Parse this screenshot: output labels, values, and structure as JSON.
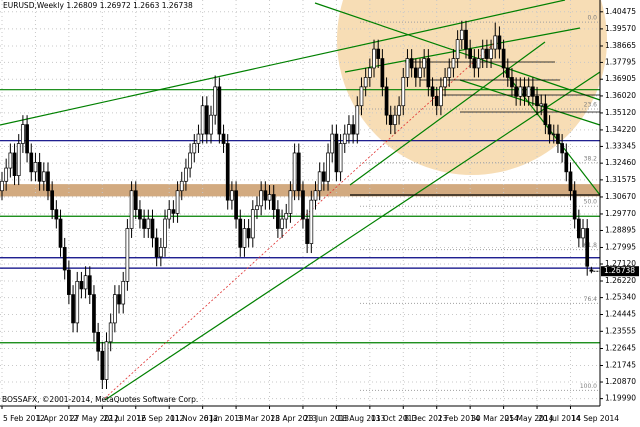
{
  "chart_data": {
    "type": "candlestick",
    "title": "EURUSD,Weekly",
    "footer": "BOSSAFX, ©2001-2014, MetaQuotes Software Corp.",
    "x": [
      "5 Feb 2012",
      null,
      null,
      null,
      null,
      null,
      null,
      null,
      "1 Apr 2012",
      null,
      null,
      null,
      null,
      null,
      null,
      null,
      "27 May 2012",
      null,
      null,
      null,
      null,
      null,
      null,
      null,
      "22 Jul 2012",
      null,
      null,
      null,
      null,
      null,
      null,
      null,
      "16 Sep 2012",
      null,
      null,
      null,
      null,
      null,
      null,
      null,
      "11 Nov 2012",
      null,
      null,
      null,
      null,
      null,
      null,
      null,
      "6 Jan 2013",
      null,
      null,
      null,
      null,
      null,
      null,
      null,
      "3 Mar 2013",
      null,
      null,
      null,
      null,
      null,
      null,
      null,
      "28 Apr 2013",
      null,
      null,
      null,
      null,
      null,
      null,
      null,
      "23 Jun 2013",
      null,
      null,
      null,
      null,
      null,
      null,
      null,
      "18 Aug 2013",
      null,
      null,
      null,
      null,
      null,
      null,
      null,
      "13 Oct 2013",
      null,
      null,
      null,
      null,
      null,
      null,
      null,
      "8 Dec 2013",
      null,
      null,
      null,
      null,
      null,
      null,
      null,
      "2 Feb 2014",
      null,
      null,
      null,
      null,
      null,
      null,
      null,
      "30 Mar 2014",
      null,
      null,
      null,
      null,
      null,
      null,
      null,
      "25 May 2014",
      null,
      null,
      null,
      null,
      null,
      null,
      null,
      "20 Jul 2014",
      null,
      null,
      null,
      null,
      null,
      null,
      null,
      "14 Sep 2014",
      null,
      null,
      null,
      null,
      null
    ],
    "open": [
      1.31,
      1.315,
      1.322,
      1.33,
      1.318,
      1.335,
      1.345,
      1.33,
      1.32,
      1.325,
      1.315,
      1.32,
      1.31,
      1.3,
      1.295,
      1.28,
      1.268,
      1.255,
      1.24,
      1.262,
      1.258,
      1.265,
      1.255,
      1.235,
      1.225,
      1.21,
      1.23,
      1.24,
      1.255,
      1.25,
      1.262,
      1.29,
      1.31,
      1.3,
      1.295,
      1.29,
      1.295,
      1.285,
      1.275,
      1.28,
      1.295,
      1.3,
      1.298,
      1.31,
      1.315,
      1.322,
      1.33,
      1.335,
      1.34,
      1.355,
      1.34,
      1.35,
      1.365,
      1.34,
      1.335,
      1.305,
      1.31,
      1.295,
      1.28,
      1.29,
      1.285,
      1.3,
      1.302,
      1.31,
      1.305,
      1.308,
      1.3,
      1.29,
      1.295,
      1.298,
      1.31,
      1.33,
      1.31,
      1.295,
      1.282,
      1.305,
      1.31,
      1.32,
      1.315,
      1.33,
      1.34,
      1.32,
      1.335,
      1.34,
      1.345,
      1.34,
      1.355,
      1.365,
      1.37,
      1.375,
      1.385,
      1.38,
      1.365,
      1.35,
      1.345,
      1.35,
      1.355,
      1.37,
      1.38,
      1.375,
      1.37,
      1.375,
      1.38,
      1.365,
      1.36,
      1.355,
      1.365,
      1.37,
      1.375,
      1.38,
      1.39,
      1.395,
      1.385,
      1.38,
      1.375,
      1.38,
      1.385,
      1.38,
      1.385,
      1.392,
      1.385,
      1.375,
      1.37,
      1.365,
      1.36,
      1.365,
      1.36,
      1.365,
      1.36,
      1.355,
      1.356,
      1.345,
      1.34,
      1.34,
      1.335,
      1.33,
      1.32,
      1.31,
      1.295,
      1.285,
      1.29,
      1.26809
    ],
    "high": [
      1.32,
      1.327,
      1.335,
      1.335,
      1.34,
      1.35,
      1.35,
      1.335,
      1.33,
      1.33,
      1.325,
      1.325,
      1.315,
      1.305,
      1.3,
      1.285,
      1.273,
      1.26,
      1.267,
      1.267,
      1.27,
      1.27,
      1.26,
      1.24,
      1.23,
      1.235,
      1.245,
      1.26,
      1.26,
      1.267,
      1.295,
      1.315,
      1.315,
      1.305,
      1.3,
      1.3,
      1.3,
      1.29,
      1.285,
      1.3,
      1.305,
      1.305,
      1.315,
      1.32,
      1.327,
      1.335,
      1.34,
      1.345,
      1.36,
      1.36,
      1.355,
      1.371,
      1.37,
      1.345,
      1.34,
      1.315,
      1.315,
      1.3,
      1.295,
      1.295,
      1.305,
      1.307,
      1.315,
      1.315,
      1.313,
      1.313,
      1.305,
      1.3,
      1.303,
      1.315,
      1.335,
      1.335,
      1.315,
      1.3,
      1.31,
      1.315,
      1.325,
      1.325,
      1.335,
      1.345,
      1.345,
      1.34,
      1.345,
      1.35,
      1.35,
      1.36,
      1.37,
      1.375,
      1.38,
      1.39,
      1.39,
      1.385,
      1.37,
      1.355,
      1.355,
      1.36,
      1.375,
      1.385,
      1.385,
      1.38,
      1.38,
      1.385,
      1.385,
      1.37,
      1.365,
      1.37,
      1.375,
      1.38,
      1.385,
      1.395,
      1.4,
      1.4,
      1.39,
      1.385,
      1.385,
      1.39,
      1.39,
      1.39,
      1.399,
      1.397,
      1.39,
      1.38,
      1.375,
      1.37,
      1.37,
      1.37,
      1.37,
      1.37,
      1.365,
      1.361,
      1.361,
      1.35,
      1.345,
      1.345,
      1.34,
      1.335,
      1.325,
      1.315,
      1.3,
      1.295,
      1.295,
      1.26972
    ],
    "low": [
      1.305,
      1.31,
      1.317,
      1.313,
      1.313,
      1.33,
      1.325,
      1.315,
      1.315,
      1.31,
      1.31,
      1.305,
      1.295,
      1.29,
      1.275,
      1.263,
      1.25,
      1.235,
      1.235,
      1.253,
      1.253,
      1.25,
      1.23,
      1.22,
      1.205,
      1.205,
      1.225,
      1.235,
      1.245,
      1.245,
      1.257,
      1.285,
      1.295,
      1.29,
      1.285,
      1.285,
      1.28,
      1.27,
      1.27,
      1.275,
      1.29,
      1.293,
      1.293,
      1.305,
      1.31,
      1.317,
      1.325,
      1.33,
      1.335,
      1.335,
      1.335,
      1.345,
      1.335,
      1.33,
      1.3,
      1.3,
      1.29,
      1.275,
      1.275,
      1.28,
      1.28,
      1.295,
      1.297,
      1.3,
      1.3,
      1.295,
      1.285,
      1.285,
      1.29,
      1.293,
      1.305,
      1.305,
      1.29,
      1.277,
      1.277,
      1.3,
      1.305,
      1.31,
      1.31,
      1.325,
      1.315,
      1.315,
      1.33,
      1.335,
      1.335,
      1.335,
      1.35,
      1.36,
      1.365,
      1.37,
      1.375,
      1.36,
      1.345,
      1.34,
      1.34,
      1.345,
      1.35,
      1.365,
      1.37,
      1.365,
      1.365,
      1.37,
      1.36,
      1.355,
      1.35,
      1.35,
      1.36,
      1.365,
      1.37,
      1.375,
      1.385,
      1.38,
      1.375,
      1.37,
      1.37,
      1.375,
      1.375,
      1.375,
      1.38,
      1.38,
      1.37,
      1.365,
      1.36,
      1.355,
      1.355,
      1.355,
      1.355,
      1.355,
      1.35,
      1.35,
      1.34,
      1.335,
      1.335,
      1.33,
      1.325,
      1.315,
      1.305,
      1.29,
      1.28,
      1.28,
      1.265,
      1.2663
    ],
    "close": [
      1.315,
      1.322,
      1.33,
      1.318,
      1.335,
      1.345,
      1.33,
      1.32,
      1.325,
      1.315,
      1.32,
      1.31,
      1.3,
      1.295,
      1.28,
      1.268,
      1.255,
      1.24,
      1.262,
      1.258,
      1.265,
      1.255,
      1.235,
      1.225,
      1.21,
      1.23,
      1.24,
      1.255,
      1.25,
      1.262,
      1.29,
      1.31,
      1.3,
      1.295,
      1.29,
      1.295,
      1.285,
      1.275,
      1.28,
      1.295,
      1.3,
      1.298,
      1.31,
      1.315,
      1.322,
      1.33,
      1.335,
      1.34,
      1.355,
      1.34,
      1.35,
      1.365,
      1.34,
      1.335,
      1.305,
      1.31,
      1.295,
      1.28,
      1.29,
      1.285,
      1.3,
      1.302,
      1.31,
      1.305,
      1.308,
      1.3,
      1.29,
      1.295,
      1.298,
      1.31,
      1.33,
      1.31,
      1.295,
      1.282,
      1.305,
      1.31,
      1.32,
      1.315,
      1.33,
      1.34,
      1.32,
      1.335,
      1.34,
      1.345,
      1.34,
      1.355,
      1.365,
      1.37,
      1.375,
      1.385,
      1.38,
      1.365,
      1.35,
      1.345,
      1.35,
      1.355,
      1.37,
      1.38,
      1.375,
      1.37,
      1.375,
      1.38,
      1.365,
      1.36,
      1.355,
      1.365,
      1.37,
      1.375,
      1.38,
      1.39,
      1.395,
      1.385,
      1.38,
      1.375,
      1.38,
      1.385,
      1.38,
      1.385,
      1.392,
      1.385,
      1.375,
      1.37,
      1.365,
      1.36,
      1.365,
      1.36,
      1.365,
      1.36,
      1.355,
      1.356,
      1.345,
      1.34,
      1.34,
      1.335,
      1.33,
      1.32,
      1.31,
      1.295,
      1.285,
      1.29,
      1.27,
      1.26738
    ],
    "ylim": [
      1.196,
      1.411
    ],
    "yticks": [
      1.40475,
      {
        "value": 1.3957,
        "label": "1.39570"
      },
      1.38665,
      1.37795,
      1.36905,
      {
        "value": 1.3602,
        "label": "1.36020"
      },
      {
        "value": 1.3512,
        "label": "1.35120"
      },
      {
        "value": 1.3422,
        "label": "1.34220"
      },
      1.33345,
      {
        "value": 1.3246,
        "label": "1.32460"
      },
      1.31575,
      {
        "value": 1.3067,
        "label": "1.30670"
      },
      {
        "value": 1.2977,
        "label": "1.29770"
      },
      1.28895,
      1.27995,
      {
        "value": 1.2712,
        "label": "1.27120"
      },
      {
        "value": 1.2622,
        "label": "1.26220"
      },
      {
        "value": 1.2534,
        "label": "1.25340"
      },
      1.24445,
      1.23555,
      1.22645,
      1.21745,
      {
        "value": 1.2087,
        "label": "1.20870"
      },
      {
        "value": 1.1999,
        "label": "1.19990"
      }
    ],
    "grid": true,
    "levels": [
      {
        "value": 1.3635,
        "color": "#008000"
      },
      {
        "value": 1.3365,
        "color": "#000080"
      },
      {
        "value": 1.2965,
        "color": "#008000"
      },
      {
        "value": 1.2745,
        "color": "#000080"
      },
      {
        "value": 1.269,
        "color": "#000080"
      },
      {
        "value": 1.2295,
        "color": "#008000"
      }
    ],
    "zone": {
      "from": 1.307,
      "to": 1.3135,
      "color": "#d2aa80"
    },
    "fib": {
      "from": 1.2043,
      "to": 1.3993,
      "levels": [
        {
          "value": 0,
          "label": "0.0"
        },
        23.6,
        38.2,
        {
          "value": 50,
          "label": "50.0"
        },
        61.8,
        76.4,
        {
          "value": 100,
          "label": "100.0"
        }
      ]
    }
  }
}
